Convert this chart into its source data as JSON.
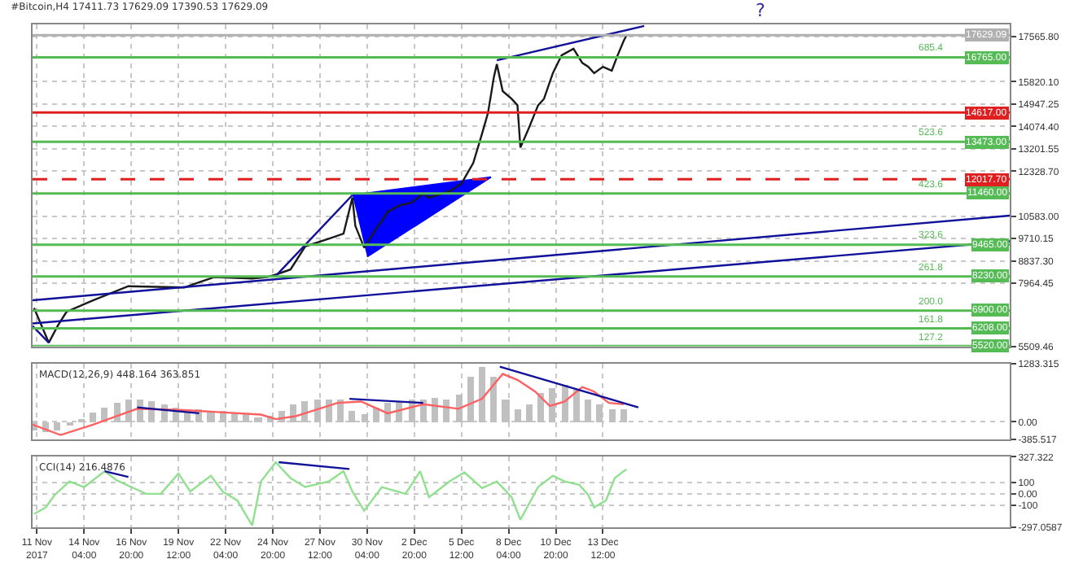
{
  "chart_data": [
    {
      "type": "line",
      "title": "#Bitcoin,H4 17411.73 17629.09 17390.53 17629.09",
      "tick_labels": "y",
      "xlim": [
        "2017-11-11T06:00",
        "2018-01-05T12:00"
      ],
      "xticks": [
        {
          "value": "2017-11-11T12:00",
          "label": null
        },
        {
          "value": "2017-11-14T04:00",
          "label": null
        },
        {
          "value": "2017-11-16T20:00",
          "label": null
        },
        {
          "value": "2017-11-19T12:00",
          "label": null
        },
        {
          "value": "2017-11-22T04:00",
          "label": null
        },
        {
          "value": "2017-11-24T20:00",
          "label": null
        },
        {
          "value": "2017-11-27T12:00",
          "label": null
        },
        {
          "value": "2017-11-30T04:00",
          "label": null
        },
        {
          "value": "2017-12-02T20:00",
          "label": null
        },
        {
          "value": "2017-12-05T12:00",
          "label": null
        },
        {
          "value": "2017-12-08T04:00",
          "label": null
        },
        {
          "value": "2017-12-10T20:00",
          "label": null
        },
        {
          "value": "2017-12-13T12:00",
          "label": null
        }
      ],
      "ylim": [
        5509.46,
        18050
      ],
      "yticks": [
        {
          "value": 17565.8,
          "label": "17565.80"
        },
        {
          "value": 15820.1,
          "label": "15820.10"
        },
        {
          "value": 14947.25,
          "label": "14947.25"
        },
        {
          "value": 14074.4,
          "label": "14074.40"
        },
        {
          "value": 13201.55,
          "label": "13201.55"
        },
        {
          "value": 12328.7,
          "label": "12328.70"
        },
        {
          "value": 10583.0,
          "label": "10583.00"
        },
        {
          "value": 9710.15,
          "label": "9710.15"
        },
        {
          "value": 8837.3,
          "label": "8837.30"
        },
        {
          "value": 7964.45,
          "label": "7964.45"
        },
        {
          "value": 5509.46,
          "label": "5509.46"
        }
      ],
      "grid": true,
      "annotations": [
        "?",
        {
          "text": "685.4",
          "x": "2018-01-02T00:00",
          "y": 16765
        },
        {
          "text": "523.6",
          "x": "2018-01-02T00:00",
          "y": 13473
        },
        {
          "text": "423.6",
          "x": "2018-01-02T00:00",
          "y": 11460
        },
        {
          "text": "323.6",
          "x": "2018-01-02T00:00",
          "y": 9465
        },
        {
          "text": "261.8",
          "x": "2018-01-02T00:00",
          "y": 8230
        },
        {
          "text": "200.0",
          "x": "2018-01-02T00:00",
          "y": 6900
        },
        {
          "text": "161.8",
          "x": "2018-01-02T00:00",
          "y": 6208
        },
        {
          "text": "127.2",
          "x": "2018-01-02T00:00",
          "y": 5520
        }
      ],
      "ref_lines": [
        {
          "axis": "y",
          "value": 17629.09,
          "label": "17629.09",
          "color": "#b0b0b0"
        },
        {
          "axis": "y",
          "value": 16765.0,
          "label": "16765.00",
          "color": "#55bb55"
        },
        {
          "axis": "y",
          "value": 14617.0,
          "label": "14617.00",
          "color": "#e02020"
        },
        {
          "axis": "y",
          "value": 13473.0,
          "label": "13473.00",
          "color": "#55bb55"
        },
        {
          "axis": "y",
          "value": 12017.7,
          "label": "12017.70",
          "color": "#e02020",
          "line_style": "dashed"
        },
        {
          "axis": "y",
          "value": 11460.0,
          "label": "11460.00",
          "color": "#55bb55"
        },
        {
          "axis": "y",
          "value": 9465.0,
          "label": "9465.00",
          "color": "#55bb55"
        },
        {
          "axis": "y",
          "value": 8230.0,
          "label": "8230.00",
          "color": "#55bb55"
        },
        {
          "axis": "y",
          "value": 6900.0,
          "label": "6900.00",
          "color": "#55bb55"
        },
        {
          "axis": "y",
          "value": 6208.0,
          "label": "6208.00",
          "color": "#55bb55"
        },
        {
          "axis": "y",
          "value": 5520.0,
          "label": "5520.00",
          "color": "#55bb55"
        }
      ],
      "series": [
        {
          "color": "#1a1a1a",
          "x": [
            "2017-11-11T08:00",
            "2017-11-12T04:00",
            "2017-11-12T16:00",
            "2017-11-13T04:00",
            "2017-11-14T16:00",
            "2017-11-16T16:00",
            "2017-11-19T20:00",
            "2017-11-20T16:00",
            "2017-11-21T12:00",
            "2017-11-23T16:00",
            "2017-11-24T12:00",
            "2017-11-25T00:00",
            "2017-11-25T20:00",
            "2017-11-26T16:00",
            "2017-11-28T00:00",
            "2017-11-28T20:00",
            "2017-11-29T08:00",
            "2017-11-29T12:00",
            "2017-11-30T00:00",
            "2017-11-30T12:00",
            "2017-12-01T08:00",
            "2017-12-02T00:00",
            "2017-12-02T16:00",
            "2017-12-03T08:00",
            "2017-12-03T16:00",
            "2017-12-04T20:00",
            "2017-12-05T12:00",
            "2017-12-06T04:00",
            "2017-12-06T16:00",
            "2017-12-07T00:00",
            "2017-12-07T08:00",
            "2017-12-07T12:00",
            "2017-12-07T20:00",
            "2017-12-08T08:00",
            "2017-12-08T16:00",
            "2017-12-08T20:00",
            "2017-12-09T08:00",
            "2017-12-09T20:00",
            "2017-12-10T04:00",
            "2017-12-10T16:00",
            "2017-12-11T04:00",
            "2017-12-11T20:00",
            "2017-12-12T08:00",
            "2017-12-12T16:00",
            "2017-12-13T00:00",
            "2017-12-13T12:00",
            "2017-12-14T00:00",
            "2017-12-14T08:00",
            "2017-12-14T16:00",
            "2017-12-14T20:00"
          ],
          "values": [
            7000,
            5650,
            6300,
            6850,
            7300,
            7850,
            7800,
            8000,
            8200,
            8150,
            8200,
            8300,
            8500,
            9400,
            9700,
            9900,
            11300,
            10200,
            9350,
            9900,
            10750,
            11000,
            11100,
            11450,
            11300,
            11550,
            11850,
            12650,
            13800,
            14600,
            16000,
            16500,
            15450,
            15150,
            14900,
            13250,
            14050,
            14900,
            15150,
            16150,
            16850,
            17100,
            16550,
            16400,
            16150,
            16400,
            16250,
            16850,
            17400,
            17629.09
          ]
        },
        {
          "color": "#10109a",
          "x": [
            "2017-12-07T12:00",
            "2017-12-15T20:00"
          ],
          "values": [
            16650,
            17990
          ]
        },
        {
          "color": "#10109a",
          "x": [
            "2017-11-11T06:00",
            "2018-01-05T12:00"
          ],
          "values": [
            7300,
            10600
          ]
        },
        {
          "color": "#10109a",
          "x": [
            "2017-11-11T06:00",
            "2018-01-05T12:00"
          ],
          "values": [
            6400,
            9600
          ]
        },
        {
          "color": "#10109a",
          "x": [
            "2017-11-11T06:00",
            "2017-11-12T04:00"
          ],
          "values": [
            6300,
            5650
          ]
        },
        {
          "color": "#10109a",
          "x": [
            "2017-11-25T00:00",
            "2017-11-29T08:00"
          ],
          "values": [
            8250,
            11400
          ]
        },
        {
          "type": "area",
          "color": "#0000ff",
          "x": [
            "2017-11-29T08:00",
            "2017-12-07T04:00",
            "2017-11-30T04:00"
          ],
          "values": [
            11400,
            12100,
            9000
          ]
        }
      ]
    },
    {
      "type": "bar",
      "tick_labels": "y",
      "xlim": [
        "2017-11-11T06:00",
        "2018-01-05T12:00"
      ],
      "xticks": [
        {
          "value": "2017-11-11T12:00",
          "label": null
        },
        {
          "value": "2017-11-14T04:00",
          "label": null
        },
        {
          "value": "2017-11-16T20:00",
          "label": null
        },
        {
          "value": "2017-11-19T12:00",
          "label": null
        },
        {
          "value": "2017-11-22T04:00",
          "label": null
        },
        {
          "value": "2017-11-24T20:00",
          "label": null
        },
        {
          "value": "2017-11-27T12:00",
          "label": null
        },
        {
          "value": "2017-11-30T04:00",
          "label": null
        },
        {
          "value": "2017-12-02T20:00",
          "label": null
        },
        {
          "value": "2017-12-05T12:00",
          "label": null
        },
        {
          "value": "2017-12-08T04:00",
          "label": null
        },
        {
          "value": "2017-12-10T20:00",
          "label": null
        },
        {
          "value": "2017-12-13T12:00",
          "label": null
        }
      ],
      "ylim": [
        -385.517,
        1283.315
      ],
      "yticks": [
        1283.315,
        {
          "value": 0,
          "label": "0.00"
        },
        -385.517
      ],
      "grid": true,
      "annotations": [
        "MACD(12,26,9) 448.164 363.851"
      ],
      "series": [
        {
          "color": "#c0c0c0",
          "x": [
            "2017-11-11T08:00",
            "2017-11-12T00:00",
            "2017-11-12T16:00",
            "2017-11-13T08:00",
            "2017-11-14T00:00",
            "2017-11-14T16:00",
            "2017-11-15T08:00",
            "2017-11-16T00:00",
            "2017-11-16T16:00",
            "2017-11-17T08:00",
            "2017-11-18T00:00",
            "2017-11-18T16:00",
            "2017-11-19T08:00",
            "2017-11-20T00:00",
            "2017-11-20T16:00",
            "2017-11-21T08:00",
            "2017-11-22T00:00",
            "2017-11-22T16:00",
            "2017-11-23T08:00",
            "2017-11-24T00:00",
            "2017-11-24T16:00",
            "2017-11-25T08:00",
            "2017-11-26T00:00",
            "2017-11-26T16:00",
            "2017-11-27T08:00",
            "2017-11-28T00:00",
            "2017-11-28T16:00",
            "2017-11-29T08:00",
            "2017-11-30T00:00",
            "2017-11-30T16:00",
            "2017-12-01T08:00",
            "2017-12-02T00:00",
            "2017-12-02T16:00",
            "2017-12-03T08:00",
            "2017-12-04T00:00",
            "2017-12-04T16:00",
            "2017-12-05T08:00",
            "2017-12-06T00:00",
            "2017-12-06T16:00",
            "2017-12-07T08:00",
            "2017-12-08T00:00",
            "2017-12-08T16:00",
            "2017-12-09T08:00",
            "2017-12-10T00:00",
            "2017-12-10T16:00",
            "2017-12-11T08:00",
            "2017-12-12T00:00",
            "2017-12-12T16:00",
            "2017-12-13T08:00",
            "2017-12-14T00:00",
            "2017-12-14T16:00"
          ],
          "values": [
            -190,
            -220,
            -200,
            -100,
            60,
            200,
            320,
            420,
            480,
            500,
            450,
            380,
            320,
            280,
            260,
            240,
            230,
            200,
            150,
            100,
            120,
            250,
            400,
            450,
            480,
            480,
            480,
            250,
            150,
            300,
            420,
            450,
            480,
            500,
            540,
            480,
            600,
            1000,
            1220,
            1000,
            500,
            260,
            400,
            620,
            760,
            830,
            700,
            500,
            380,
            290,
            280
          ]
        },
        {
          "type": "line",
          "color": "#ff6060",
          "x": [
            "2017-11-11T06:00",
            "2017-11-12T20:00",
            "2017-11-14T16:00",
            "2017-11-17T04:00",
            "2017-11-19T20:00",
            "2017-11-24T04:00",
            "2017-11-25T00:00",
            "2017-11-26T04:00",
            "2017-11-28T12:00",
            "2017-11-29T20:00",
            "2017-12-01T08:00",
            "2017-12-03T08:00",
            "2017-12-05T08:00",
            "2017-12-06T16:00",
            "2017-12-07T20:00",
            "2017-12-08T16:00",
            "2017-12-09T16:00",
            "2017-12-10T12:00",
            "2017-12-11T08:00",
            "2017-12-12T08:00",
            "2017-12-13T00:00",
            "2017-12-13T20:00",
            "2017-12-14T16:00"
          ],
          "values": [
            -60,
            -290,
            -60,
            290,
            260,
            160,
            60,
            130,
            420,
            450,
            190,
            390,
            290,
            510,
            1060,
            930,
            670,
            350,
            450,
            770,
            670,
            420,
            390
          ]
        },
        {
          "type": "line",
          "color": "#10109a",
          "x": [
            "2017-11-17T04:00",
            "2017-11-20T16:00"
          ],
          "values": [
            320,
            190
          ]
        },
        {
          "type": "line",
          "color": "#10109a",
          "x": [
            "2017-11-29T04:00",
            "2017-12-03T08:00"
          ],
          "values": [
            510,
            420
          ]
        },
        {
          "type": "line",
          "color": "#10109a",
          "x": [
            "2017-12-07T16:00",
            "2017-12-15T12:00"
          ],
          "values": [
            1220,
            320
          ]
        }
      ]
    },
    {
      "type": "line",
      "xlim": [
        "2017-11-11T06:00",
        "2018-01-05T12:00"
      ],
      "xticks": [
        {
          "value": "2017-11-11T12:00",
          "label": "11 Nov 2017"
        },
        {
          "value": "2017-11-14T04:00",
          "label": "14 Nov 04:00"
        },
        {
          "value": "2017-11-16T20:00",
          "label": "16 Nov 20:00"
        },
        {
          "value": "2017-11-19T12:00",
          "label": "19 Nov 12:00"
        },
        {
          "value": "2017-11-22T04:00",
          "label": "22 Nov 04:00"
        },
        {
          "value": "2017-11-24T20:00",
          "label": "24 Nov 20:00"
        },
        {
          "value": "2017-11-27T12:00",
          "label": "27 Nov 12:00"
        },
        {
          "value": "2017-11-30T04:00",
          "label": "30 Nov 04:00"
        },
        {
          "value": "2017-12-02T20:00",
          "label": "2 Dec 20:00"
        },
        {
          "value": "2017-12-05T12:00",
          "label": "5 Dec 12:00"
        },
        {
          "value": "2017-12-08T04:00",
          "label": "8 Dec 04:00"
        },
        {
          "value": "2017-12-10T20:00",
          "label": "10 Dec 20:00"
        },
        {
          "value": "2017-12-13T12:00",
          "label": "13 Dec 12:00"
        }
      ],
      "ylim": [
        -297.0587,
        327.322
      ],
      "yticks": [
        327.322,
        100,
        {
          "value": 0,
          "label": "0.00"
        },
        -100,
        -297.0587
      ],
      "grid": true,
      "annotations": [
        "CCI(14) 216.4876"
      ],
      "series": [
        {
          "color": "#90e090",
          "x": [
            "2017-11-11T08:00",
            "2017-11-12T00:00",
            "2017-11-12T12:00",
            "2017-11-13T08:00",
            "2017-11-14T04:00",
            "2017-11-15T08:00",
            "2017-11-16T00:00",
            "2017-11-16T20:00",
            "2017-11-17T16:00",
            "2017-11-18T12:00",
            "2017-11-19T12:00",
            "2017-11-20T04:00",
            "2017-11-21T08:00",
            "2017-11-22T00:00",
            "2017-11-22T20:00",
            "2017-11-23T16:00",
            "2017-11-24T04:00",
            "2017-11-25T00:00",
            "2017-11-25T20:00",
            "2017-11-26T16:00",
            "2017-11-28T00:00",
            "2017-11-28T20:00",
            "2017-11-29T08:00",
            "2017-11-30T00:00",
            "2017-12-01T00:00",
            "2017-12-02T08:00",
            "2017-12-03T04:00",
            "2017-12-03T16:00",
            "2017-12-04T20:00",
            "2017-12-05T16:00",
            "2017-12-06T16:00",
            "2017-12-07T12:00",
            "2017-12-08T08:00",
            "2017-12-08T20:00",
            "2017-12-09T20:00",
            "2017-12-10T16:00",
            "2017-12-11T08:00",
            "2017-12-12T04:00",
            "2017-12-12T16:00",
            "2017-12-13T00:00",
            "2017-12-13T16:00",
            "2017-12-14T04:00",
            "2017-12-14T16:00",
            "2017-12-14T20:00"
          ],
          "values": [
            -180,
            -120,
            -10,
            110,
            60,
            200,
            120,
            60,
            0,
            0,
            180,
            20,
            160,
            20,
            -60,
            -280,
            110,
            280,
            140,
            60,
            110,
            200,
            20,
            -150,
            60,
            0,
            200,
            -30,
            110,
            190,
            50,
            110,
            -30,
            -230,
            60,
            160,
            110,
            80,
            -10,
            -120,
            -60,
            140,
            200,
            216.4876
          ]
        },
        {
          "color": "#10109a",
          "x": [
            "2017-11-15T08:00",
            "2017-11-16T16:00"
          ],
          "values": [
            200,
            150
          ]
        },
        {
          "color": "#10109a",
          "x": [
            "2017-11-25T04:00",
            "2017-11-29T04:00"
          ],
          "values": [
            280,
            220
          ]
        }
      ]
    }
  ]
}
